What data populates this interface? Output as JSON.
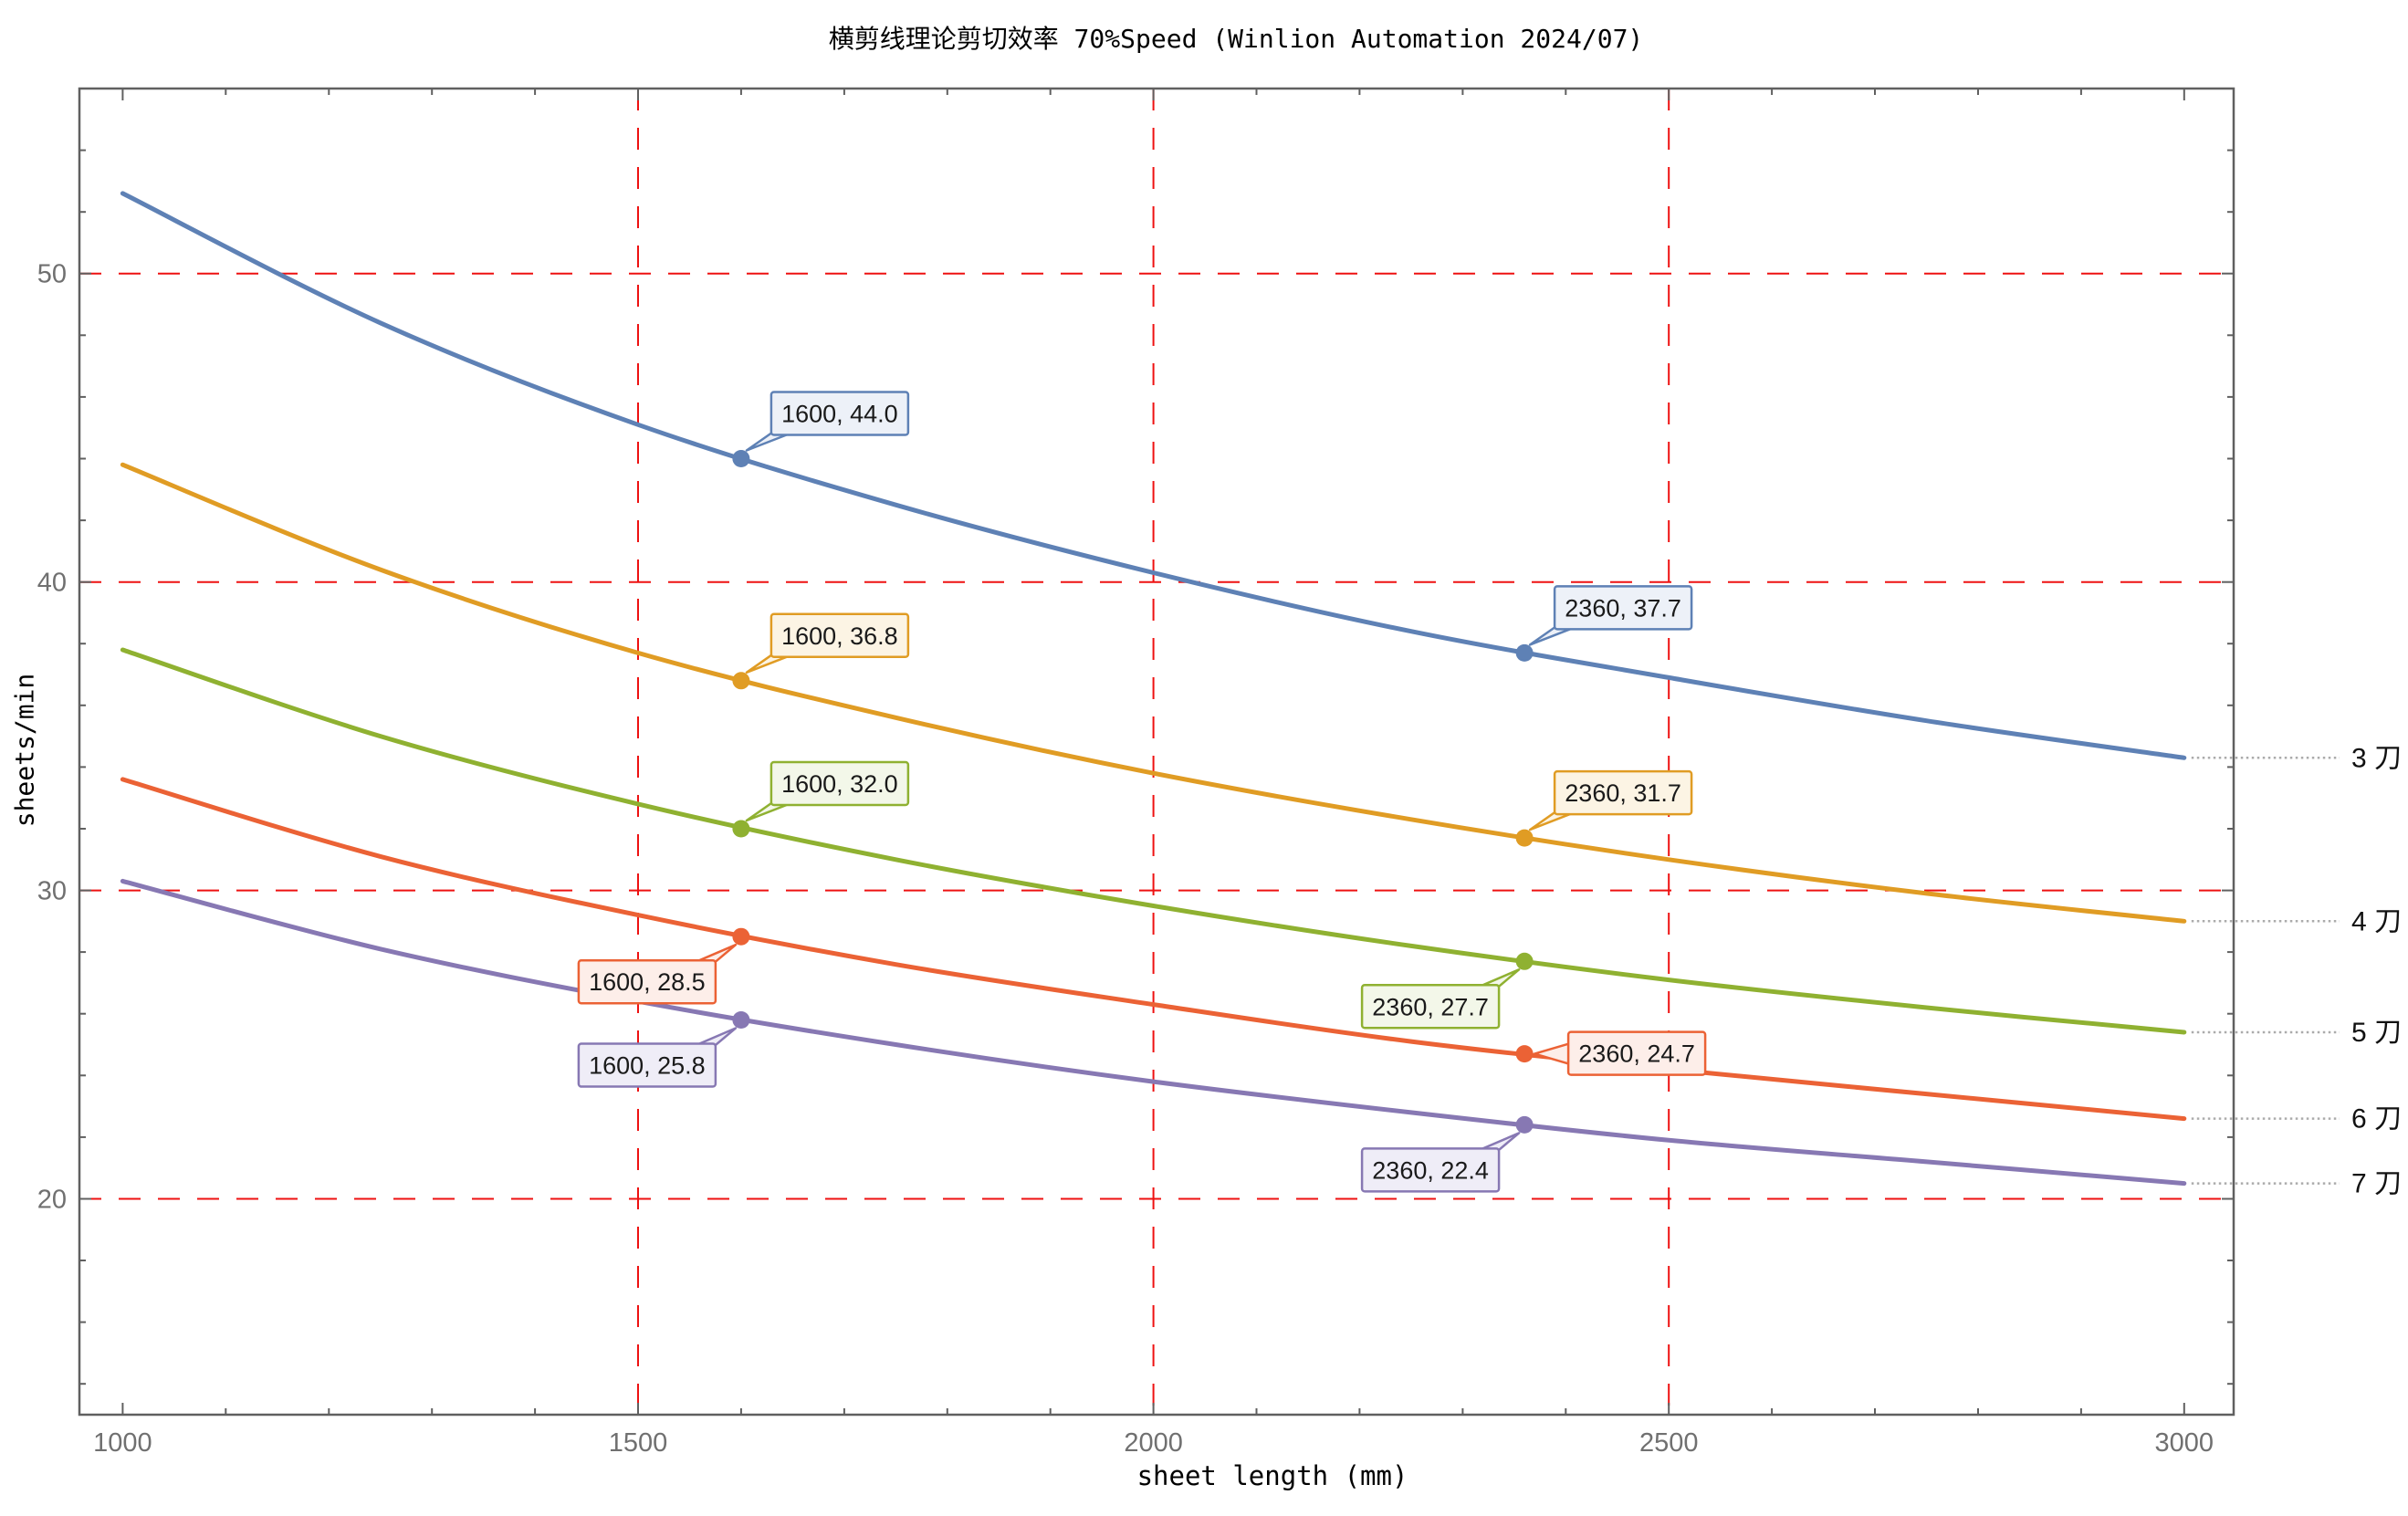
{
  "chart_data": {
    "type": "line",
    "title": "横剪线理论剪切效率 70%Speed (Winlion Automation 2024/07)",
    "xlabel": "sheet length (mm)",
    "ylabel": "sheets/min",
    "xlim": [
      958,
      3048
    ],
    "ylim": [
      13,
      56
    ],
    "x_major_ticks": [
      1000,
      1500,
      2000,
      2500,
      3000
    ],
    "x_minor_tick_step": 100,
    "y_major_ticks": [
      20,
      30,
      40,
      50
    ],
    "y_minor_tick_step": 2,
    "grid_x": [
      1500,
      2000,
      2500
    ],
    "grid_y": [
      20,
      30,
      40,
      50
    ],
    "grid_color": "#EE1111",
    "grid_style": "dashed",
    "frame_color": "#606060",
    "tick_label_color": "#707070",
    "leader_color": "#ABABAB",
    "legend_position": "right-end-labels",
    "x": [
      1000,
      1250,
      1500,
      1750,
      2000,
      2250,
      2500,
      2750,
      3000
    ],
    "series": [
      {
        "name": "3 刀",
        "color": "#5E81B5",
        "tint": "#EDF1F8",
        "values": [
          52.6,
          48.4,
          45.1,
          42.5,
          40.3,
          38.4,
          36.9,
          35.5,
          34.3
        ],
        "callouts": [
          {
            "x": 1600,
            "y": 44.0,
            "label": "1600, 44.0",
            "pos": "ne"
          },
          {
            "x": 2360,
            "y": 37.7,
            "label": "2360, 37.7",
            "pos": "ne"
          }
        ]
      },
      {
        "name": "4 刀",
        "color": "#E09C24",
        "tint": "#FCF4E4",
        "values": [
          43.8,
          40.4,
          37.7,
          35.6,
          33.8,
          32.3,
          31.0,
          29.9,
          29.0
        ],
        "callouts": [
          {
            "x": 1600,
            "y": 36.8,
            "label": "1600, 36.8",
            "pos": "ne"
          },
          {
            "x": 2360,
            "y": 31.7,
            "label": "2360, 31.7",
            "pos": "ne"
          }
        ]
      },
      {
        "name": "5 刀",
        "color": "#8FB131",
        "tint": "#F3F7E9",
        "values": [
          37.8,
          35.0,
          32.8,
          31.0,
          29.5,
          28.2,
          27.1,
          26.2,
          25.4
        ],
        "callouts": [
          {
            "x": 1600,
            "y": 32.0,
            "label": "1600, 32.0",
            "pos": "ne"
          },
          {
            "x": 2360,
            "y": 27.7,
            "label": "2360, 27.7",
            "pos": "sw"
          }
        ]
      },
      {
        "name": "6 刀",
        "color": "#EB6235",
        "tint": "#FDEEE9",
        "values": [
          33.6,
          31.1,
          29.2,
          27.6,
          26.3,
          25.1,
          24.2,
          23.4,
          22.6
        ],
        "callouts": [
          {
            "x": 1600,
            "y": 28.5,
            "label": "1600, 28.5",
            "pos": "sw"
          },
          {
            "x": 2360,
            "y": 24.7,
            "label": "2360, 24.7",
            "pos": "e"
          }
        ]
      },
      {
        "name": "7 刀",
        "color": "#8778B3",
        "tint": "#EFEDF7",
        "values": [
          30.3,
          28.1,
          26.4,
          25.0,
          23.8,
          22.8,
          21.9,
          21.2,
          20.5
        ],
        "callouts": [
          {
            "x": 1600,
            "y": 25.8,
            "label": "1600, 25.8",
            "pos": "sw"
          },
          {
            "x": 2360,
            "y": 22.4,
            "label": "2360, 22.4",
            "pos": "sw"
          }
        ]
      }
    ]
  }
}
